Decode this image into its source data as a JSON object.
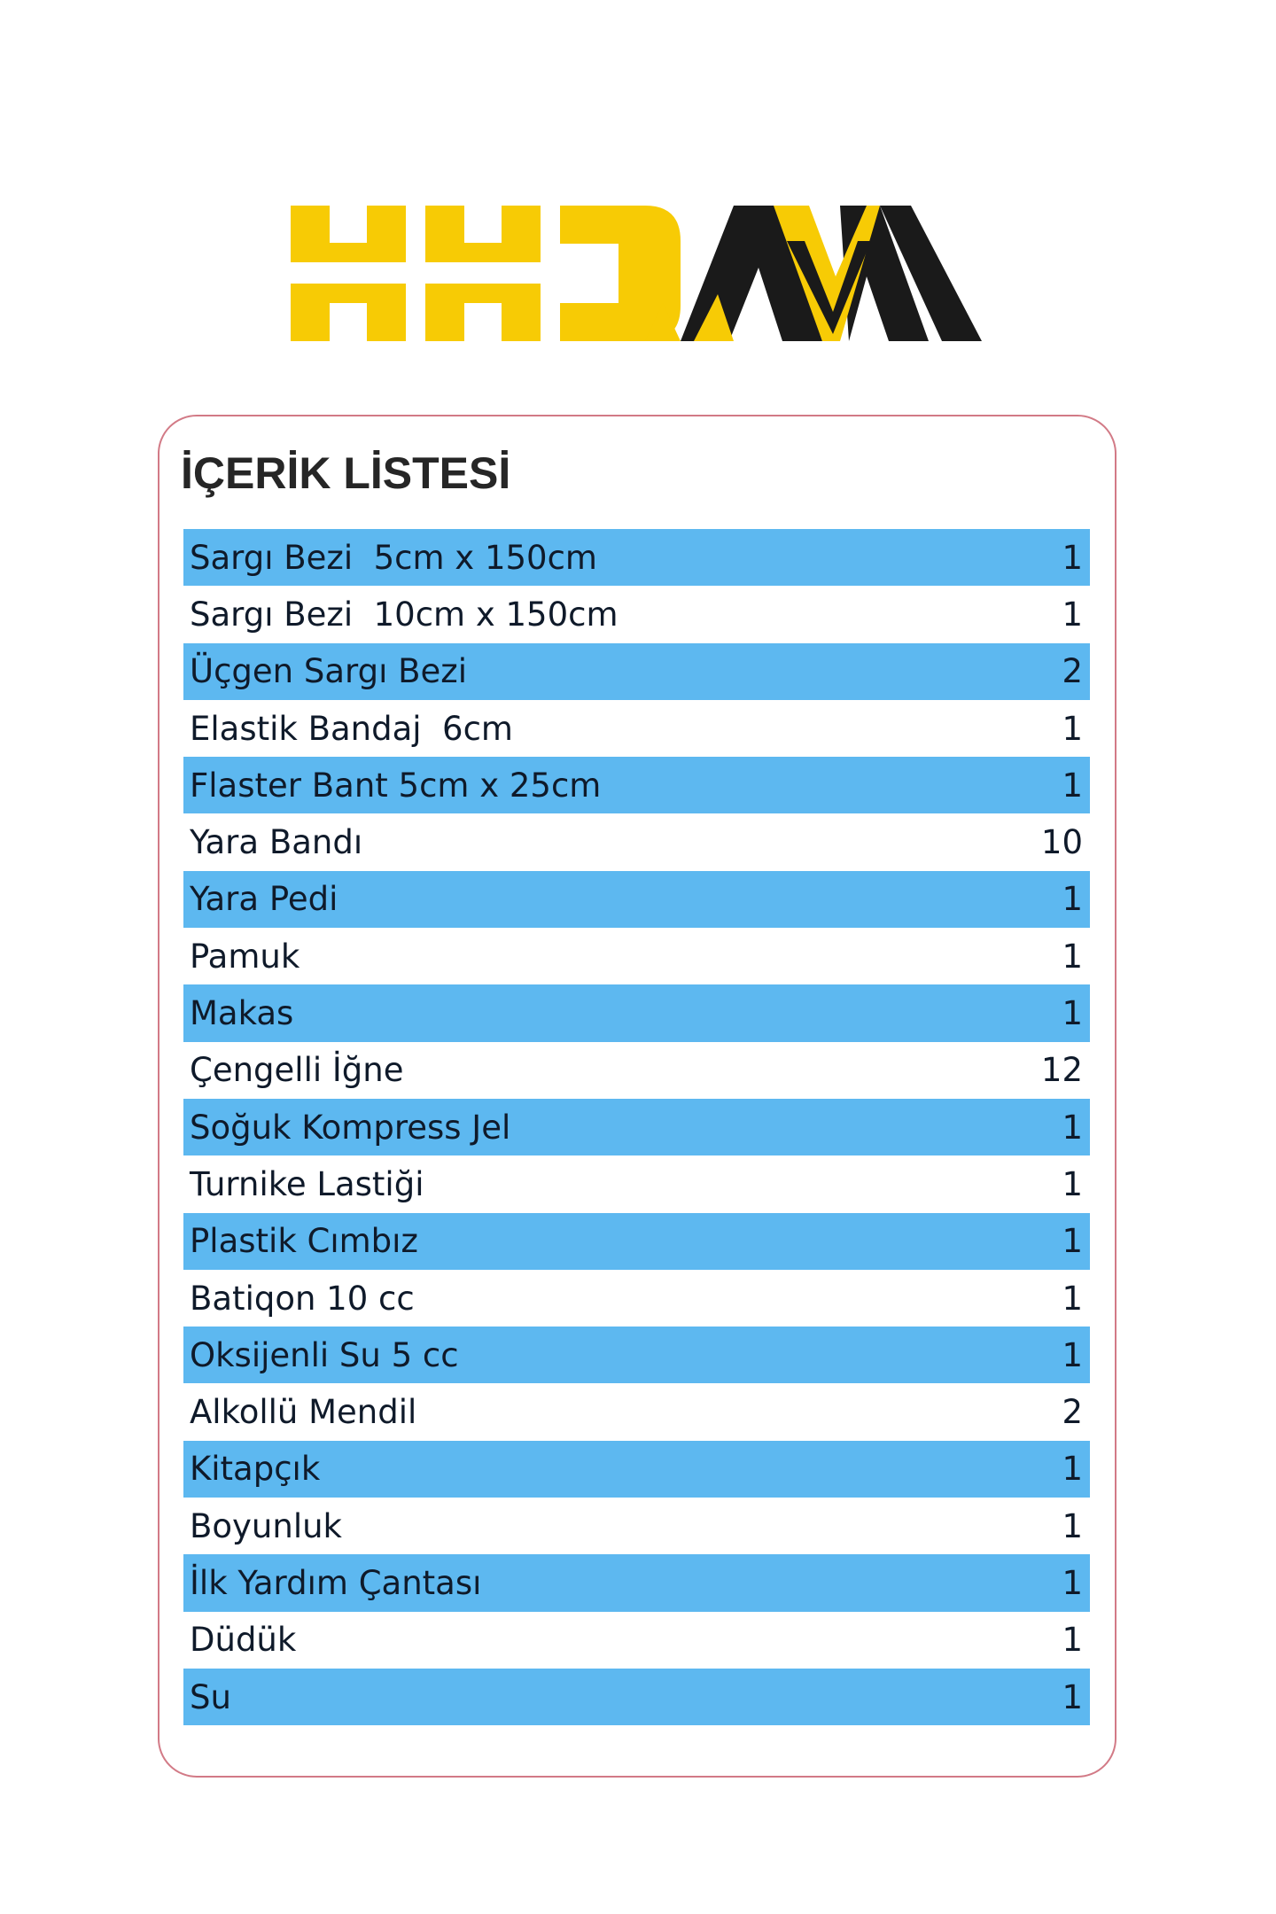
{
  "logo": {
    "text": "KKDAVM",
    "colors": {
      "yellow": "#f7cb05",
      "black": "#1a1a1a"
    }
  },
  "title": "İÇERİK LİSTESİ",
  "colors": {
    "row_highlight": "#5db8f0",
    "card_border": "#d27a86"
  },
  "items": [
    {
      "name": "Sargı Bezi  5cm x 150cm",
      "qty": "1"
    },
    {
      "name": "Sargı Bezi  10cm x 150cm",
      "qty": "1"
    },
    {
      "name": "Üçgen Sargı Bezi",
      "qty": "2"
    },
    {
      "name": "Elastik Bandaj  6cm",
      "qty": "1"
    },
    {
      "name": "Flaster Bant 5cm x 25cm",
      "qty": "1"
    },
    {
      "name": "Yara Bandı",
      "qty": "10"
    },
    {
      "name": "Yara Pedi",
      "qty": "1"
    },
    {
      "name": "Pamuk",
      "qty": "1"
    },
    {
      "name": "Makas",
      "qty": "1"
    },
    {
      "name": "Çengelli İğne",
      "qty": "12"
    },
    {
      "name": "Soğuk Kompress Jel",
      "qty": "1"
    },
    {
      "name": "Turnike Lastiği",
      "qty": "1"
    },
    {
      "name": "Plastik Cımbız",
      "qty": "1"
    },
    {
      "name": "Batiqon 10 cc",
      "qty": "1"
    },
    {
      "name": "Oksijenli Su 5 cc",
      "qty": "1"
    },
    {
      "name": "Alkollü Mendil",
      "qty": "2"
    },
    {
      "name": "Kitapçık",
      "qty": "1"
    },
    {
      "name": "Boyunluk",
      "qty": "1"
    },
    {
      "name": "İlk Yardım Çantası",
      "qty": "1"
    },
    {
      "name": "Düdük",
      "qty": "1"
    },
    {
      "name": "Su",
      "qty": "1"
    }
  ]
}
